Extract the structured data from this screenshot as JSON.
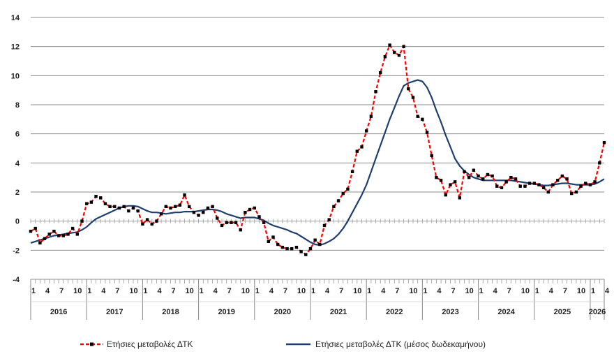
{
  "chart_data": {
    "type": "line",
    "title": "",
    "xlabel": "",
    "ylabel": "",
    "ylim": [
      -4,
      14
    ],
    "yticks": [
      "-4",
      "-2",
      "0",
      "2",
      "4",
      "6",
      "8",
      "10",
      "12",
      "14"
    ],
    "ytick_values": [
      -4,
      -2,
      0,
      2,
      4,
      6,
      8,
      10,
      12,
      14
    ],
    "month_tick_labels": [
      "1",
      "4",
      "7",
      "10"
    ],
    "last_month_tick_labels": [
      "1",
      "4"
    ],
    "years": [
      "2016",
      "2017",
      "2018",
      "2019",
      "2020",
      "2021",
      "2022",
      "2023",
      "2024",
      "2025",
      "2026"
    ],
    "start": "2016-01",
    "grid": true,
    "legend_position": "bottom",
    "series": [
      {
        "name": "Ετήσιες μεταβολές ΔΤΚ",
        "color": "#ff0000",
        "marker_color": "#000000",
        "style": "dashed",
        "values": [
          -0.7,
          -0.5,
          -1.5,
          -1.2,
          -0.9,
          -0.7,
          -1.0,
          -1.0,
          -0.9,
          -0.5,
          -0.9,
          0.0,
          1.2,
          1.3,
          1.7,
          1.6,
          1.2,
          1.0,
          1.0,
          0.9,
          1.0,
          0.7,
          0.9,
          0.7,
          -0.2,
          0.1,
          -0.2,
          0.0,
          0.5,
          1.0,
          0.9,
          1.0,
          1.1,
          1.8,
          1.0,
          0.6,
          0.4,
          0.6,
          0.9,
          1.0,
          0.2,
          -0.3,
          -0.1,
          -0.1,
          -0.1,
          -0.6,
          0.6,
          0.8,
          0.9,
          0.3,
          -0.1,
          -1.4,
          -1.1,
          -1.6,
          -1.8,
          -1.9,
          -1.9,
          -1.8,
          -2.1,
          -2.3,
          -1.9,
          -1.3,
          -1.6,
          -0.3,
          0.1,
          1.0,
          1.4,
          1.9,
          2.2,
          3.4,
          4.8,
          5.1,
          6.2,
          7.2,
          8.9,
          10.2,
          11.3,
          12.1,
          11.6,
          11.4,
          12.0,
          9.1,
          8.5,
          7.2,
          7.0,
          6.1,
          4.5,
          3.0,
          2.8,
          1.8,
          2.5,
          2.7,
          1.6,
          3.4,
          3.0,
          3.5,
          3.1,
          2.9,
          3.2,
          3.1,
          2.4,
          2.3,
          2.7,
          3.0,
          2.9,
          2.4,
          2.4,
          2.6,
          2.6,
          2.5,
          2.3,
          2.0,
          2.5,
          2.8,
          3.1,
          2.9,
          1.9,
          2.0,
          2.4,
          2.6,
          2.5,
          2.7,
          4.0,
          5.4
        ]
      },
      {
        "name": "Ετήσιες μεταβολές ΔΤΚ (μέσος δωδεκαμήνου)",
        "color": "#1f3f6e",
        "style": "solid",
        "values": [
          -1.5,
          -1.4,
          -1.3,
          -1.2,
          -1.1,
          -1.0,
          -0.95,
          -0.9,
          -0.85,
          -0.8,
          -0.75,
          -0.6,
          -0.4,
          -0.1,
          0.15,
          0.3,
          0.45,
          0.6,
          0.75,
          0.9,
          1.0,
          1.05,
          1.05,
          1.0,
          0.85,
          0.7,
          0.6,
          0.6,
          0.55,
          0.5,
          0.55,
          0.6,
          0.6,
          0.65,
          0.65,
          0.65,
          0.7,
          0.75,
          0.8,
          0.8,
          0.75,
          0.65,
          0.5,
          0.4,
          0.3,
          0.2,
          0.25,
          0.25,
          0.25,
          0.15,
          0.05,
          -0.15,
          -0.3,
          -0.4,
          -0.5,
          -0.6,
          -0.75,
          -0.85,
          -1.05,
          -1.25,
          -1.45,
          -1.6,
          -1.65,
          -1.55,
          -1.4,
          -1.2,
          -0.9,
          -0.5,
          0.0,
          0.6,
          1.2,
          1.8,
          2.5,
          3.4,
          4.3,
          5.2,
          6.1,
          7.0,
          7.8,
          8.6,
          9.3,
          9.5,
          9.6,
          9.7,
          9.6,
          9.2,
          8.5,
          7.6,
          6.8,
          5.9,
          5.1,
          4.3,
          3.8,
          3.45,
          3.2,
          3.0,
          2.9,
          2.8,
          2.8,
          2.8,
          2.8,
          2.8,
          2.8,
          2.8,
          2.75,
          2.7,
          2.65,
          2.6,
          2.55,
          2.5,
          2.45,
          2.45,
          2.5,
          2.55,
          2.6,
          2.6,
          2.55,
          2.5,
          2.5,
          2.5,
          2.5,
          2.55,
          2.7,
          2.9
        ]
      }
    ]
  }
}
